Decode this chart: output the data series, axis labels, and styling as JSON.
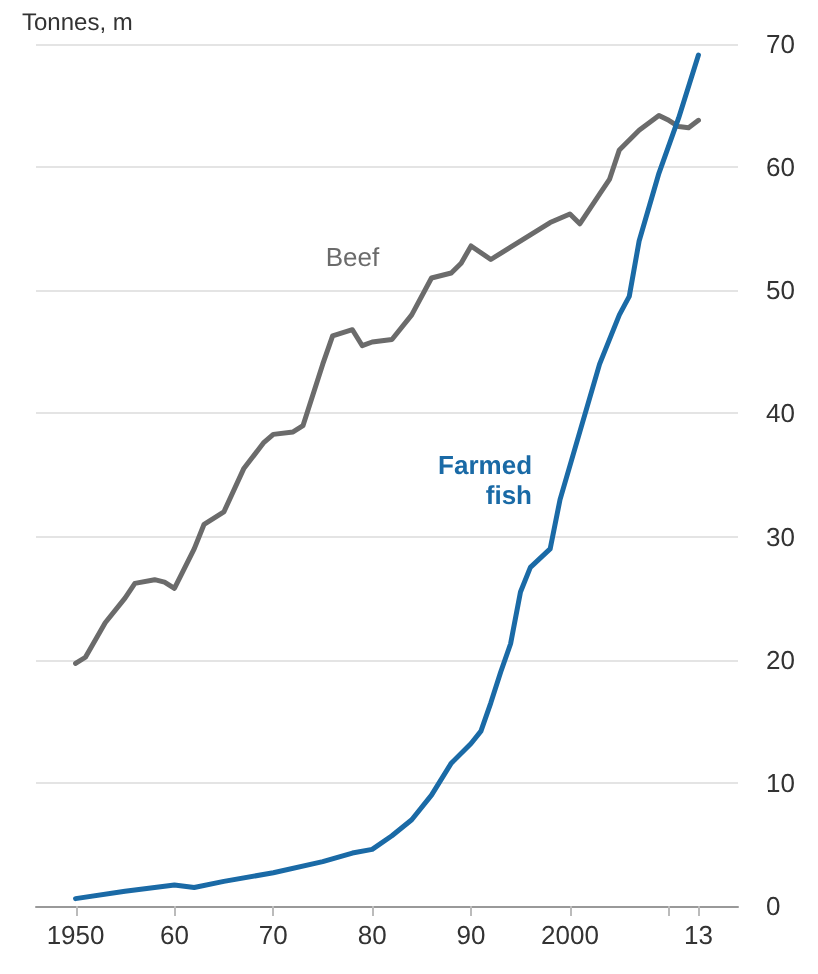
{
  "chart_data": {
    "type": "line",
    "title": "Tonnes, m",
    "xlim": [
      1946,
      2017
    ],
    "xticks": [
      {
        "value": 1950,
        "label": "1950"
      },
      {
        "value": 1960,
        "label": "60"
      },
      {
        "value": 1970,
        "label": "70"
      },
      {
        "value": 1980,
        "label": "80"
      },
      {
        "value": 1990,
        "label": "90"
      },
      {
        "value": 2000,
        "label": "2000"
      },
      {
        "value": 2010,
        "label": null
      },
      {
        "value": 2013,
        "label": "13"
      }
    ],
    "ylim": [
      0,
      70
    ],
    "yticks": [
      0,
      10,
      20,
      30,
      40,
      50,
      60,
      70
    ],
    "grid": "y",
    "legend": false,
    "marker": "none",
    "line_style": "solid",
    "series": [
      {
        "name": "Beef",
        "color": "#6b6b6b",
        "x": [
          1950,
          1951,
          1953,
          1955,
          1956,
          1958,
          1959,
          1960,
          1962,
          1963,
          1965,
          1967,
          1969,
          1970,
          1972,
          1973,
          1975,
          1976,
          1978,
          1979,
          1980,
          1982,
          1984,
          1986,
          1988,
          1989,
          1990,
          1992,
          1994,
          1996,
          1998,
          2000,
          2001,
          2003,
          2004,
          2005,
          2007,
          2009,
          2010,
          2011,
          2012,
          2013
        ],
        "values": [
          19.7,
          20.2,
          23,
          25,
          26.2,
          26.5,
          26.3,
          25.8,
          29,
          31,
          32,
          35.5,
          37.6,
          38.3,
          38.5,
          39,
          44,
          46.3,
          46.8,
          45.5,
          45.8,
          46,
          48,
          51,
          51.4,
          52.2,
          53.6,
          52.5,
          53.5,
          54.5,
          55.5,
          56.2,
          55.4,
          57.8,
          59,
          61.4,
          63,
          64.2,
          63.8,
          63.3,
          63.2,
          63.8
        ]
      },
      {
        "name": "Farmed fish",
        "color": "#1a6aa6",
        "x": [
          1950,
          1955,
          1960,
          1962,
          1965,
          1970,
          1975,
          1978,
          1980,
          1982,
          1984,
          1986,
          1988,
          1990,
          1991,
          1992,
          1993,
          1994,
          1995,
          1996,
          1998,
          1999,
          2001,
          2003,
          2005,
          2006,
          2007,
          2009,
          2011,
          2013
        ],
        "values": [
          0.6,
          1.2,
          1.7,
          1.5,
          2,
          2.7,
          3.6,
          4.3,
          4.6,
          5.7,
          7,
          9,
          11.6,
          13.2,
          14.2,
          16.5,
          19,
          21.3,
          25.5,
          27.5,
          29,
          33,
          38.5,
          44,
          48,
          49.5,
          54,
          59.5,
          64,
          69.1
        ]
      }
    ]
  }
}
